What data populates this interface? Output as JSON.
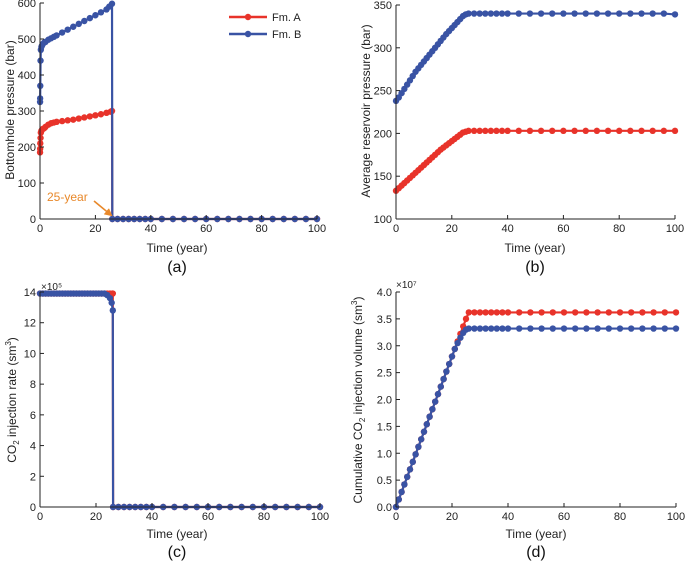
{
  "colors": {
    "fmA": "#E8332A",
    "fmB": "#3953A4",
    "annotation": "#E8882A"
  },
  "chart_data": [
    {
      "type": "line",
      "panel_label": "(a)",
      "xlabel": "Time (year)",
      "ylabel": "Bottomhole pressure (bar)",
      "xlim": [
        0,
        100
      ],
      "ylim": [
        0,
        600
      ],
      "xticks": [
        0,
        20,
        40,
        60,
        80,
        100
      ],
      "yticks": [
        0,
        100,
        200,
        300,
        400,
        500,
        600
      ],
      "grid": false,
      "legend": {
        "placement": "top-right",
        "entries": [
          "Fm. A",
          "Fm. B"
        ]
      },
      "annotation": {
        "text": "25-year",
        "x": 25,
        "y": 0
      },
      "series": [
        {
          "name": "Fm. A",
          "color": "#E8332A",
          "x": [
            0.02,
            0.05,
            0.1,
            0.2,
            0.3,
            0.5,
            0.75,
            1,
            1.5,
            2,
            3,
            4,
            5,
            6,
            8,
            10,
            12,
            14,
            16,
            18,
            20,
            22,
            24,
            25.5,
            26,
            26.1,
            28,
            30,
            32,
            34,
            36,
            38,
            40,
            44,
            48,
            52,
            56,
            60,
            64,
            68,
            72,
            76,
            80,
            84,
            88,
            92,
            96,
            100
          ],
          "y": [
            185,
            195,
            210,
            225,
            240,
            245,
            248,
            250,
            252,
            256,
            262,
            266,
            268,
            270,
            272,
            274,
            276,
            279,
            282,
            285,
            288,
            291,
            295,
            298,
            300,
            0,
            0,
            0,
            0,
            0,
            0,
            0,
            0,
            0,
            0,
            0,
            0,
            0,
            0,
            0,
            0,
            0,
            0,
            0,
            0,
            0,
            0,
            0
          ]
        },
        {
          "name": "Fm. B",
          "color": "#3953A4",
          "x": [
            0.02,
            0.05,
            0.1,
            0.2,
            0.3,
            0.5,
            0.75,
            1,
            1.5,
            2,
            3,
            4,
            5,
            6,
            8,
            10,
            12,
            14,
            16,
            18,
            20,
            22,
            24,
            25,
            26,
            26.1,
            28,
            30,
            32,
            34,
            36,
            38,
            40,
            44,
            48,
            52,
            56,
            60,
            64,
            68,
            72,
            76,
            80,
            84,
            88,
            92,
            96,
            100
          ],
          "y": [
            325,
            335,
            370,
            440,
            470,
            478,
            482,
            486,
            490,
            492,
            498,
            502,
            506,
            510,
            518,
            526,
            534,
            542,
            550,
            558,
            566,
            574,
            582,
            590,
            598,
            0,
            0,
            0,
            0,
            0,
            0,
            0,
            0,
            0,
            0,
            0,
            0,
            0,
            0,
            0,
            0,
            0,
            0,
            0,
            0,
            0,
            0,
            0
          ]
        }
      ]
    },
    {
      "type": "line",
      "panel_label": "(b)",
      "xlabel": "Time (year)",
      "ylabel": "Average reservoir pressure (bar)",
      "xlim": [
        0,
        100
      ],
      "ylim": [
        100,
        350
      ],
      "xticks": [
        0,
        20,
        40,
        60,
        80,
        100
      ],
      "yticks": [
        100,
        150,
        200,
        250,
        300,
        350
      ],
      "grid": false,
      "series": [
        {
          "name": "Fm. A",
          "color": "#E8332A",
          "x": [
            0,
            1,
            2,
            3,
            4,
            5,
            6,
            7,
            8,
            9,
            10,
            11,
            12,
            13,
            14,
            15,
            16,
            17,
            18,
            19,
            20,
            21,
            22,
            23,
            24,
            25,
            26,
            28,
            30,
            32,
            34,
            36,
            38,
            40,
            44,
            48,
            52,
            56,
            60,
            64,
            68,
            72,
            76,
            80,
            84,
            88,
            92,
            96,
            100
          ],
          "y": [
            133,
            136,
            139,
            142,
            145,
            148,
            151,
            154,
            157,
            160,
            163,
            166,
            169,
            172,
            175,
            178,
            181,
            183.5,
            186,
            188.5,
            191,
            193.5,
            196,
            198.5,
            201,
            202,
            203,
            203,
            203,
            203,
            203,
            203,
            203,
            203,
            203,
            203,
            203,
            203,
            203,
            203,
            203,
            203,
            203,
            203,
            203,
            203,
            203,
            203,
            203
          ]
        },
        {
          "name": "Fm. B",
          "color": "#3953A4",
          "x": [
            0,
            1,
            2,
            3,
            4,
            5,
            6,
            7,
            8,
            9,
            10,
            11,
            12,
            13,
            14,
            15,
            16,
            17,
            18,
            19,
            20,
            21,
            22,
            23,
            24,
            25,
            26,
            28,
            30,
            32,
            34,
            36,
            38,
            40,
            44,
            48,
            52,
            56,
            60,
            64,
            68,
            72,
            76,
            80,
            84,
            88,
            92,
            96,
            100
          ],
          "y": [
            238,
            242,
            247,
            252,
            257,
            262,
            267,
            272,
            276,
            280,
            284,
            288,
            292,
            296,
            300,
            304,
            308,
            312,
            316,
            319.5,
            323,
            326.5,
            330,
            333.5,
            337,
            339,
            340,
            340,
            340,
            340,
            340,
            340,
            340,
            340,
            340,
            340,
            340,
            340,
            340,
            340,
            340,
            340,
            340,
            340,
            340,
            340,
            340,
            340,
            339
          ]
        }
      ]
    },
    {
      "type": "line",
      "panel_label": "(c)",
      "xlabel": "Time (year)",
      "ylabel": "CO2 injection rate (sm3)",
      "exponent": "×10⁵",
      "xlim": [
        0,
        100
      ],
      "ylim": [
        0,
        14
      ],
      "xticks": [
        0,
        20,
        40,
        60,
        80,
        100
      ],
      "yticks": [
        0,
        2,
        4,
        6,
        8,
        10,
        12,
        14
      ],
      "grid": false,
      "series": [
        {
          "name": "Fm. A",
          "color": "#E8332A",
          "x": [
            0,
            1,
            2,
            3,
            4,
            5,
            6,
            7,
            8,
            9,
            10,
            11,
            12,
            13,
            14,
            15,
            16,
            17,
            18,
            19,
            20,
            21,
            22,
            23,
            24,
            25,
            25.9,
            26,
            26.1,
            28,
            30,
            32,
            34,
            36,
            38,
            40,
            44,
            48,
            52,
            56,
            60,
            64,
            68,
            72,
            76,
            80,
            84,
            88,
            92,
            96,
            100
          ],
          "y": [
            13.9,
            13.9,
            13.9,
            13.9,
            13.9,
            13.9,
            13.9,
            13.9,
            13.9,
            13.9,
            13.9,
            13.9,
            13.9,
            13.9,
            13.9,
            13.9,
            13.9,
            13.9,
            13.9,
            13.9,
            13.9,
            13.9,
            13.9,
            13.9,
            13.9,
            13.9,
            13.9,
            13.9,
            0,
            0,
            0,
            0,
            0,
            0,
            0,
            0,
            0,
            0,
            0,
            0,
            0,
            0,
            0,
            0,
            0,
            0,
            0,
            0,
            0,
            0,
            0
          ]
        },
        {
          "name": "Fm. B",
          "color": "#3953A4",
          "x": [
            0,
            1,
            2,
            3,
            4,
            5,
            6,
            7,
            8,
            9,
            10,
            11,
            12,
            13,
            14,
            15,
            16,
            17,
            18,
            19,
            20,
            21,
            22,
            23,
            24,
            25,
            25.6,
            26,
            26.1,
            28,
            30,
            32,
            34,
            36,
            38,
            40,
            44,
            48,
            52,
            56,
            60,
            64,
            68,
            72,
            76,
            80,
            84,
            88,
            92,
            96,
            100
          ],
          "y": [
            13.9,
            13.9,
            13.9,
            13.9,
            13.9,
            13.9,
            13.9,
            13.9,
            13.9,
            13.9,
            13.9,
            13.9,
            13.9,
            13.9,
            13.9,
            13.9,
            13.9,
            13.9,
            13.9,
            13.9,
            13.9,
            13.9,
            13.9,
            13.9,
            13.8,
            13.6,
            13.3,
            12.8,
            0,
            0,
            0,
            0,
            0,
            0,
            0,
            0,
            0,
            0,
            0,
            0,
            0,
            0,
            0,
            0,
            0,
            0,
            0,
            0,
            0,
            0,
            0
          ]
        }
      ]
    },
    {
      "type": "line",
      "panel_label": "(d)",
      "xlabel": "Time (year)",
      "ylabel": "Cumulative CO2 injection volume (sm3)",
      "exponent": "×10⁷",
      "xlim": [
        0,
        100
      ],
      "ylim": [
        0,
        4.0
      ],
      "xticks": [
        0,
        20,
        40,
        60,
        80,
        100
      ],
      "yticks": [
        0,
        0.5,
        1.0,
        1.5,
        2.0,
        2.5,
        3.0,
        3.5,
        4.0
      ],
      "ytick_labels": [
        "0.0",
        "0.5",
        "1.0",
        "1.5",
        "2.0",
        "2.5",
        "3.0",
        "3.5",
        "4.0"
      ],
      "grid": false,
      "series": [
        {
          "name": "Fm. A",
          "color": "#E8332A",
          "x": [
            0,
            1,
            2,
            3,
            4,
            5,
            6,
            7,
            8,
            9,
            10,
            11,
            12,
            13,
            14,
            15,
            16,
            17,
            18,
            19,
            20,
            21,
            22,
            23,
            24,
            25,
            26,
            28,
            30,
            32,
            34,
            36,
            38,
            40,
            44,
            48,
            52,
            56,
            60,
            64,
            68,
            72,
            76,
            80,
            84,
            88,
            92,
            96,
            100
          ],
          "y": [
            0,
            0.14,
            0.28,
            0.42,
            0.56,
            0.7,
            0.84,
            0.98,
            1.12,
            1.26,
            1.4,
            1.54,
            1.68,
            1.82,
            1.96,
            2.1,
            2.24,
            2.38,
            2.52,
            2.66,
            2.8,
            2.94,
            3.08,
            3.22,
            3.36,
            3.5,
            3.62,
            3.62,
            3.62,
            3.62,
            3.62,
            3.62,
            3.62,
            3.62,
            3.62,
            3.62,
            3.62,
            3.62,
            3.62,
            3.62,
            3.62,
            3.62,
            3.62,
            3.62,
            3.62,
            3.62,
            3.62,
            3.62,
            3.62
          ]
        },
        {
          "name": "Fm. B",
          "color": "#3953A4",
          "x": [
            0,
            1,
            2,
            3,
            4,
            5,
            6,
            7,
            8,
            9,
            10,
            11,
            12,
            13,
            14,
            15,
            16,
            17,
            18,
            19,
            20,
            21,
            22,
            23,
            24,
            25,
            26,
            28,
            30,
            32,
            34,
            36,
            38,
            40,
            44,
            48,
            52,
            56,
            60,
            64,
            68,
            72,
            76,
            80,
            84,
            88,
            92,
            96,
            100
          ],
          "y": [
            0,
            0.14,
            0.28,
            0.42,
            0.56,
            0.7,
            0.84,
            0.98,
            1.12,
            1.26,
            1.4,
            1.54,
            1.68,
            1.82,
            1.96,
            2.1,
            2.24,
            2.38,
            2.52,
            2.66,
            2.8,
            2.94,
            3.05,
            3.15,
            3.24,
            3.3,
            3.32,
            3.32,
            3.32,
            3.32,
            3.32,
            3.32,
            3.32,
            3.32,
            3.32,
            3.32,
            3.32,
            3.32,
            3.32,
            3.32,
            3.32,
            3.32,
            3.32,
            3.32,
            3.32,
            3.32,
            3.32,
            3.32,
            3.32
          ]
        }
      ]
    }
  ]
}
